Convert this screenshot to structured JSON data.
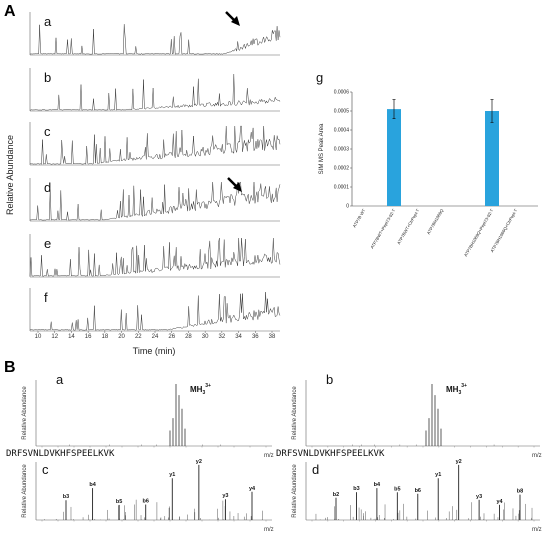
{
  "figure": {
    "panel_A_label": "A",
    "panel_B_label": "B",
    "ylabel_A": "Relative Abundance",
    "xlabel_A": "Time (min)",
    "time_ticks": [
      "10",
      "12",
      "14",
      "16",
      "18",
      "20",
      "22",
      "24",
      "26",
      "28",
      "30",
      "32",
      "34",
      "36",
      "38"
    ],
    "chromatograms": [
      {
        "label": "a",
        "arrow": true
      },
      {
        "label": "b",
        "arrow": false
      },
      {
        "label": "c",
        "arrow": false
      },
      {
        "label": "d",
        "arrow": true
      },
      {
        "label": "e",
        "arrow": false
      },
      {
        "label": "f",
        "arrow": false
      }
    ],
    "spectra_labels": [
      "a",
      "b",
      "c",
      "d"
    ],
    "ylabel_B": "Relative Abundance",
    "xlabel_B": "m/z",
    "precursor_label": "MH",
    "precursor_sub": "3",
    "precursor_sup": "3+",
    "sequence": "DRFSVNLDVKHFSPEELKVK",
    "ions_left": [
      "b3",
      "b4",
      "b5",
      "b6",
      "y1",
      "y2",
      "y3",
      "y4"
    ],
    "ions_right": [
      "b2",
      "b3",
      "b4",
      "b5",
      "b6",
      "y1",
      "y2",
      "y3",
      "y4",
      "b8"
    ]
  },
  "chart_data": {
    "type": "bar",
    "panel": "g",
    "ylabel": "SIM MS Peak Area",
    "ylim": [
      0,
      0.0006
    ],
    "yticks": [
      "0",
      "0.0001",
      "0.0002",
      "0.0003",
      "0.0004",
      "0.0005",
      "0.0006"
    ],
    "categories": [
      "ATP7B WT",
      "ATP7BWT+Pept73-92-T",
      "ATP7BWT+CtrPept-T",
      "ATP7BH1069Q",
      "ATP7BH1069Q+Pept73-92-T",
      "ATP7BH1069Q+CtrPept-T"
    ],
    "values": [
      0,
      0.00051,
      0,
      0,
      0.0005,
      0
    ],
    "errors": [
      0,
      5e-05,
      0,
      0,
      6e-05,
      0
    ],
    "color": "#29a3dd"
  }
}
